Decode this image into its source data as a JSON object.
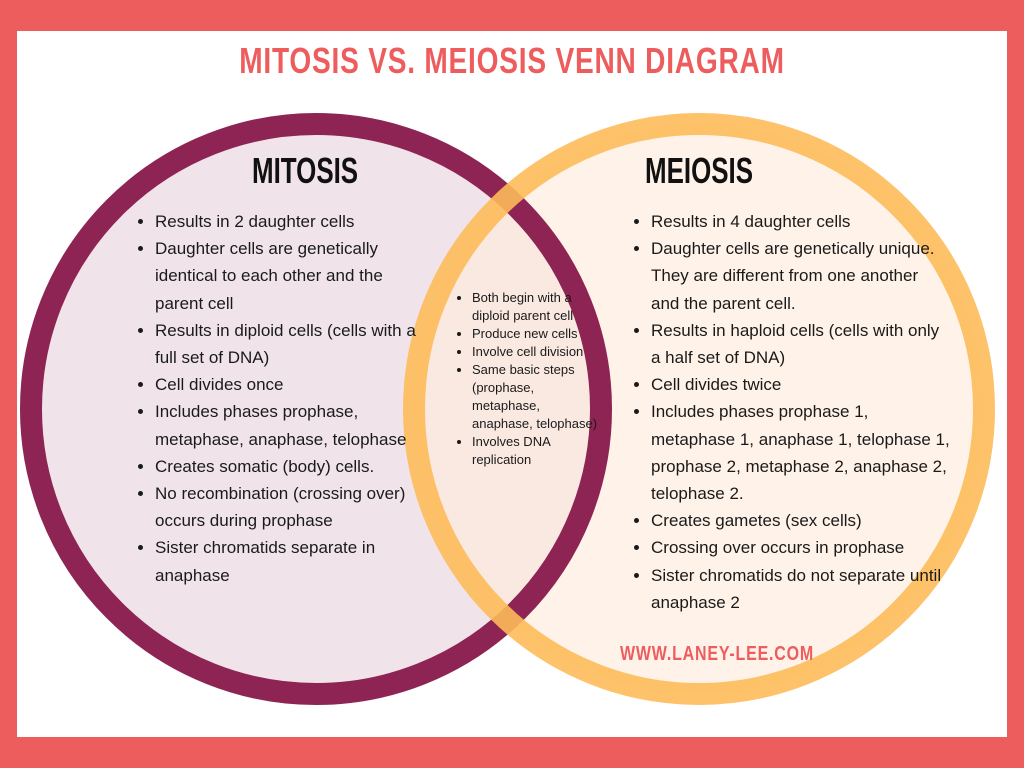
{
  "title": "MITOSIS VS. MEIOSIS VENN DIAGRAM",
  "colors": {
    "border": "#EE5D5D",
    "mitosis_ring": "#8E2453",
    "mitosis_fill": "#F0E4EA",
    "meiosis_ring": "#FDBB5A",
    "meiosis_fill": "#FFF1E6"
  },
  "mitosis": {
    "heading": "MITOSIS",
    "items": [
      "Results in 2 daughter cells",
      "Daughter cells are genetically identical to each other and the parent cell",
      "Results in diploid cells (cells with a full set of DNA)",
      "Cell divides once",
      "Includes phases prophase, metaphase, anaphase, telophase",
      "Creates somatic (body) cells.",
      "No recombination (crossing over) occurs during prophase",
      "Sister chromatids separate in anaphase"
    ]
  },
  "both": {
    "items": [
      "Both begin with a diploid parent cell",
      "Produce new cells",
      "Involve cell division",
      "Same basic steps (prophase, metaphase, anaphase, telophase)",
      "Involves DNA replication"
    ]
  },
  "meiosis": {
    "heading": "MEIOSIS",
    "items": [
      "Results in 4 daughter cells",
      "Daughter cells are genetically unique. They are different from one another and the parent cell.",
      "Results in haploid cells (cells with only a half set of DNA)",
      "Cell divides twice",
      "Includes phases prophase 1, metaphase 1, anaphase 1, telophase 1, prophase 2, metaphase 2, anaphase 2, telophase 2.",
      "Creates gametes (sex cells)",
      "Crossing over occurs in prophase",
      "Sister chromatids do not separate until anaphase 2"
    ]
  },
  "website": "WWW.LANEY-LEE.COM"
}
